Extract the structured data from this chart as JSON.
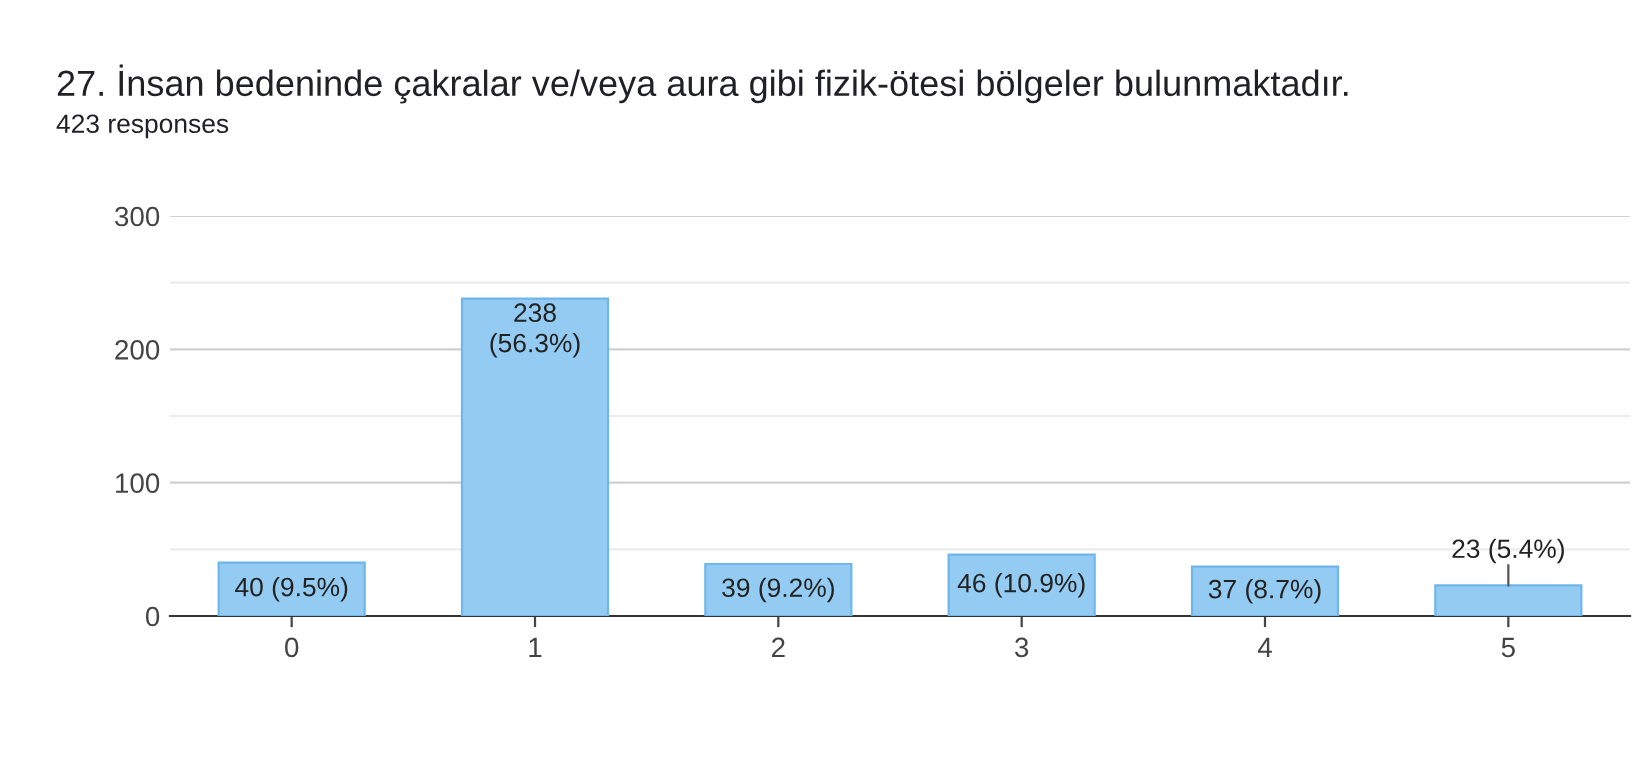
{
  "chart_data": {
    "type": "bar",
    "title": "27. İnsan bedeninde çakralar ve/veya aura gibi fizik-ötesi bölgeler bulunmaktadır.",
    "subtitle": "423 responses",
    "categories": [
      "0",
      "1",
      "2",
      "3",
      "4",
      "5"
    ],
    "values": [
      40,
      238,
      39,
      46,
      37,
      23
    ],
    "value_labels": [
      "40 (9.5%)",
      "238\n(56.3%)",
      "39 (9.2%)",
      "46 (10.9%)",
      "37 (8.7%)",
      "23 (5.4%)"
    ],
    "color": "#93cbf2",
    "ylim": [
      0,
      300
    ],
    "yticks": [
      0,
      100,
      200,
      300
    ],
    "grid": "y"
  }
}
